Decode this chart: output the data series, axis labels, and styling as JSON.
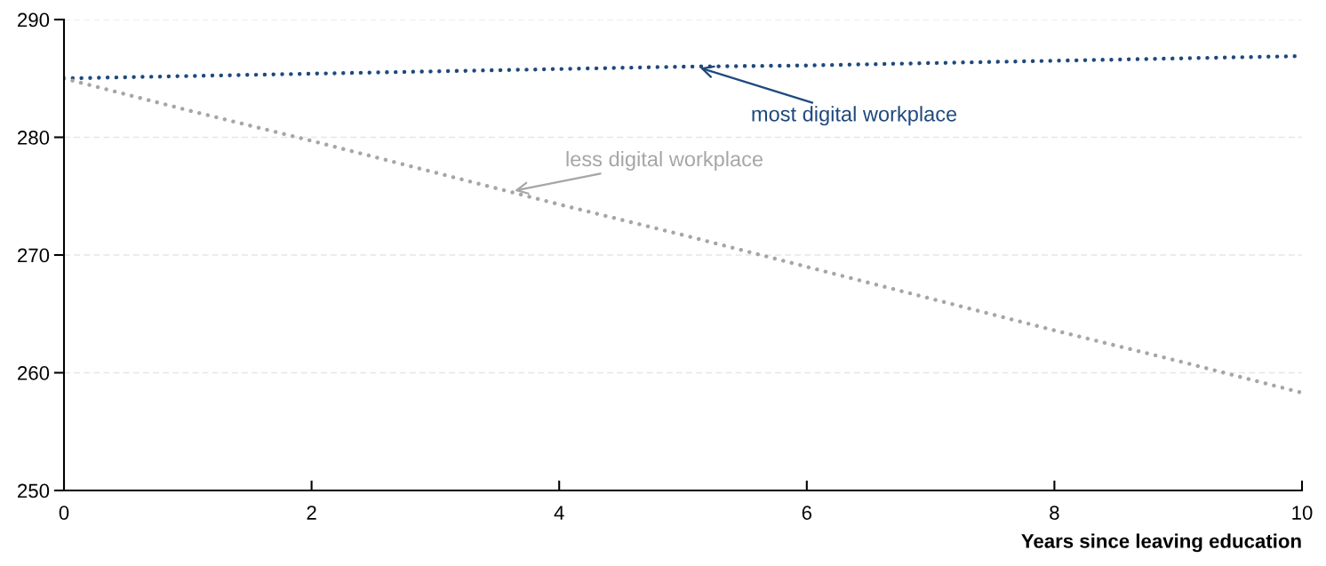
{
  "chart_data": {
    "type": "line",
    "xlabel": "Years since leaving education",
    "series": [
      {
        "name": "most digital workplace",
        "color": "#1f497d",
        "x": [
          0,
          1,
          2,
          3,
          4,
          5,
          6,
          7,
          8,
          9,
          10
        ],
        "values": [
          285,
          285.2,
          285.4,
          285.6,
          285.8,
          286.0,
          286.1,
          286.3,
          286.5,
          286.7,
          286.9
        ]
      },
      {
        "name": "less digital workplace",
        "color": "#a6a6a6",
        "x": [
          0,
          1,
          2,
          3,
          4,
          5,
          6,
          7,
          8,
          9,
          10
        ],
        "values": [
          285,
          282.3,
          279.7,
          277.0,
          274.3,
          271.7,
          269.0,
          266.3,
          263.6,
          261.0,
          258.3
        ]
      }
    ],
    "xlim": [
      0,
      10
    ],
    "xticks": [
      0,
      2,
      4,
      6,
      8,
      10
    ],
    "ylim": [
      250,
      290
    ],
    "yticks": [
      250,
      260,
      270,
      280,
      290
    ],
    "grid": "y",
    "line_style": "dotted"
  }
}
